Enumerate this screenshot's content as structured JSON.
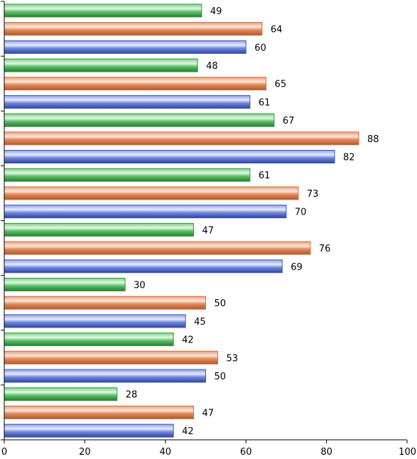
{
  "chart_data": {
    "type": "bar",
    "orientation": "horizontal",
    "title": "",
    "xlabel": "",
    "ylabel": "",
    "xlim": [
      0,
      100
    ],
    "xticks": [
      0,
      20,
      40,
      60,
      80,
      100
    ],
    "grid": false,
    "legend": "none",
    "group_count": 8,
    "series": [
      {
        "color": "#3a55c0",
        "values": [
          60,
          61,
          82,
          70,
          69,
          45,
          50,
          42
        ]
      },
      {
        "color": "#d4703a",
        "values": [
          64,
          65,
          88,
          73,
          76,
          50,
          53,
          47
        ]
      },
      {
        "color": "#2e9a3a",
        "values": [
          49,
          48,
          67,
          61,
          47,
          30,
          42,
          28
        ]
      }
    ]
  }
}
